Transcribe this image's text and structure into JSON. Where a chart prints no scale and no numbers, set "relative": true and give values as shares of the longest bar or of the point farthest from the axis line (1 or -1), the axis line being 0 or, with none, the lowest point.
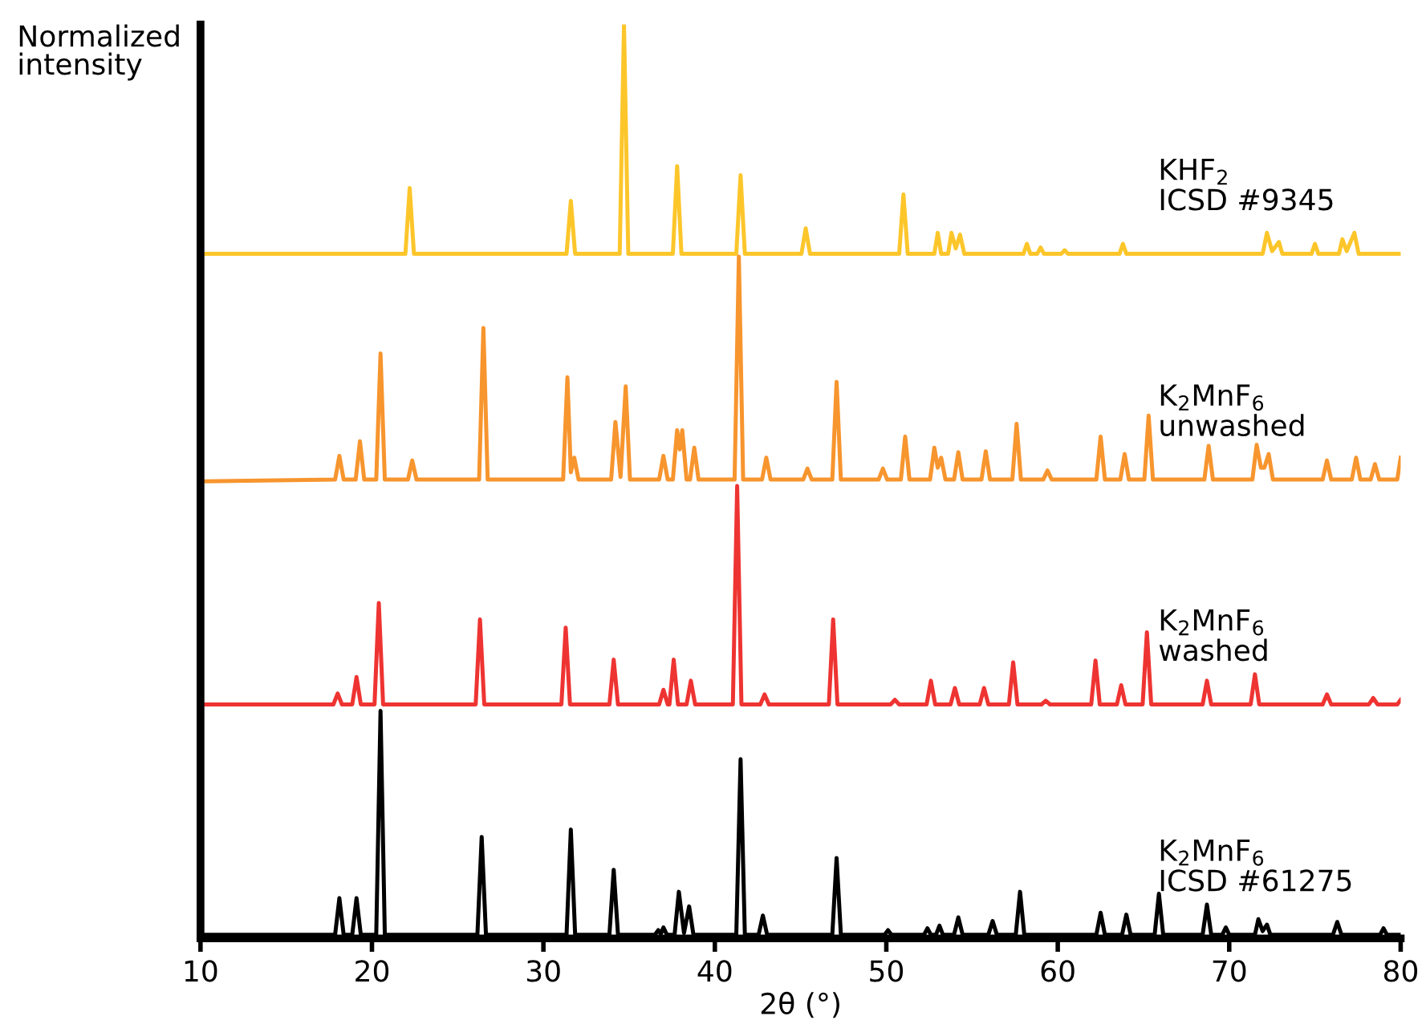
{
  "chart_data": {
    "type": "line",
    "relative": true,
    "xlabel": "2θ (°)",
    "ylabel": "Normalized\nintensity",
    "xlim": [
      10,
      80
    ],
    "xticks": [
      10,
      20,
      30,
      40,
      50,
      60,
      70,
      80
    ],
    "grid": false,
    "marker": "none",
    "line_style": "solid",
    "series": [
      {
        "name": "KHF$_{2}$\nICSD #9345",
        "color": "#fcc62b",
        "x": [
          10,
          21.95,
          22.2,
          22.45,
          31.35,
          31.6,
          31.85,
          34.45,
          34.7,
          34.95,
          37.55,
          37.8,
          38.05,
          41.25,
          41.5,
          41.75,
          45.05,
          45.3,
          45.55,
          50.75,
          51.0,
          51.25,
          52.8,
          53.0,
          53.2,
          53.6,
          53.8,
          54.05,
          54.3,
          54.55,
          58.0,
          58.2,
          58.4,
          58.8,
          59.0,
          59.2,
          60.2,
          60.4,
          60.6,
          63.6,
          63.8,
          64.0,
          71.95,
          72.2,
          72.5,
          72.9,
          73.1,
          74.8,
          75.0,
          75.2,
          76.4,
          76.6,
          76.85,
          77.3,
          77.55,
          80
        ],
        "values": [
          0.749,
          0.749,
          0.821,
          0.749,
          0.749,
          0.807,
          0.749,
          0.749,
          1.0,
          0.749,
          0.749,
          0.845,
          0.749,
          0.749,
          0.835,
          0.749,
          0.749,
          0.777,
          0.749,
          0.749,
          0.814,
          0.749,
          0.749,
          0.772,
          0.749,
          0.749,
          0.772,
          0.755,
          0.77,
          0.749,
          0.749,
          0.76,
          0.749,
          0.749,
          0.756,
          0.749,
          0.749,
          0.753,
          0.749,
          0.749,
          0.76,
          0.749,
          0.749,
          0.772,
          0.752,
          0.762,
          0.749,
          0.749,
          0.76,
          0.749,
          0.749,
          0.765,
          0.752,
          0.772,
          0.749,
          0.749
        ]
      },
      {
        "name": "K$_{2}$MnF$_{6}$\nunwashed",
        "color": "#f7952e",
        "x": [
          10,
          17.85,
          18.1,
          18.35,
          19.05,
          19.3,
          19.55,
          20.25,
          20.5,
          20.75,
          22.1,
          22.35,
          22.6,
          26.25,
          26.5,
          26.75,
          31.15,
          31.4,
          31.6,
          31.8,
          32.05,
          33.95,
          34.2,
          34.5,
          34.8,
          35.05,
          36.75,
          37.0,
          37.25,
          37.55,
          37.8,
          37.95,
          38.1,
          38.35,
          38.55,
          38.8,
          39.05,
          41.15,
          41.4,
          41.65,
          42.75,
          43.0,
          43.25,
          45.15,
          45.4,
          45.65,
          46.85,
          47.1,
          47.35,
          49.55,
          49.8,
          50.05,
          50.85,
          51.1,
          51.35,
          52.55,
          52.8,
          53.0,
          53.2,
          53.45,
          53.95,
          54.2,
          54.45,
          55.55,
          55.8,
          56.05,
          57.35,
          57.6,
          57.85,
          59.15,
          59.4,
          59.65,
          62.25,
          62.5,
          62.75,
          63.65,
          63.9,
          64.15,
          65.05,
          65.3,
          65.55,
          68.55,
          68.8,
          69.05,
          71.35,
          71.6,
          71.85,
          72.05,
          72.3,
          72.55,
          75.45,
          75.7,
          75.95,
          77.15,
          77.4,
          77.65,
          78.25,
          78.5,
          78.75,
          79.8,
          80
        ],
        "values": [
          0.5,
          0.502,
          0.528,
          0.502,
          0.502,
          0.544,
          0.502,
          0.502,
          0.64,
          0.502,
          0.502,
          0.523,
          0.502,
          0.502,
          0.668,
          0.502,
          0.502,
          0.614,
          0.51,
          0.526,
          0.502,
          0.502,
          0.565,
          0.505,
          0.604,
          0.502,
          0.502,
          0.528,
          0.502,
          0.502,
          0.556,
          0.535,
          0.556,
          0.502,
          0.502,
          0.537,
          0.502,
          0.502,
          0.746,
          0.502,
          0.502,
          0.526,
          0.502,
          0.502,
          0.514,
          0.502,
          0.502,
          0.609,
          0.502,
          0.502,
          0.514,
          0.502,
          0.502,
          0.549,
          0.502,
          0.502,
          0.537,
          0.515,
          0.526,
          0.502,
          0.502,
          0.532,
          0.502,
          0.502,
          0.533,
          0.502,
          0.502,
          0.563,
          0.502,
          0.502,
          0.512,
          0.502,
          0.502,
          0.549,
          0.502,
          0.502,
          0.53,
          0.502,
          0.502,
          0.572,
          0.502,
          0.502,
          0.539,
          0.502,
          0.502,
          0.54,
          0.515,
          0.515,
          0.53,
          0.502,
          0.502,
          0.523,
          0.502,
          0.502,
          0.526,
          0.502,
          0.502,
          0.519,
          0.502,
          0.502,
          0.526
        ]
      },
      {
        "name": "K$_{2}$MnF$_{6}$\nwashed",
        "color": "#ee3432",
        "x": [
          10,
          17.75,
          18.0,
          18.25,
          18.85,
          19.1,
          19.35,
          20.15,
          20.4,
          20.65,
          26.05,
          26.3,
          26.55,
          31.05,
          31.3,
          31.55,
          33.85,
          34.1,
          34.35,
          36.75,
          37.0,
          37.25,
          37.35,
          37.6,
          37.85,
          38.35,
          38.6,
          38.85,
          41.05,
          41.3,
          41.55,
          42.65,
          42.9,
          43.15,
          46.65,
          46.9,
          47.15,
          50.25,
          50.5,
          50.75,
          52.35,
          52.6,
          52.85,
          53.75,
          54.0,
          54.25,
          55.45,
          55.7,
          55.95,
          57.15,
          57.4,
          57.65,
          59.05,
          59.3,
          59.55,
          61.95,
          62.2,
          62.45,
          63.45,
          63.7,
          63.95,
          64.95,
          65.2,
          65.45,
          68.45,
          68.7,
          68.95,
          71.25,
          71.5,
          71.75,
          75.45,
          75.7,
          75.95,
          78.15,
          78.4,
          78.65,
          79.8,
          80
        ],
        "values": [
          0.256,
          0.256,
          0.268,
          0.256,
          0.256,
          0.286,
          0.256,
          0.256,
          0.367,
          0.256,
          0.256,
          0.349,
          0.256,
          0.256,
          0.34,
          0.256,
          0.256,
          0.305,
          0.256,
          0.256,
          0.272,
          0.256,
          0.256,
          0.305,
          0.256,
          0.256,
          0.282,
          0.256,
          0.256,
          0.495,
          0.256,
          0.256,
          0.267,
          0.256,
          0.256,
          0.349,
          0.256,
          0.256,
          0.261,
          0.256,
          0.256,
          0.282,
          0.256,
          0.256,
          0.274,
          0.256,
          0.256,
          0.274,
          0.256,
          0.256,
          0.302,
          0.256,
          0.256,
          0.26,
          0.256,
          0.256,
          0.304,
          0.256,
          0.256,
          0.277,
          0.256,
          0.256,
          0.335,
          0.256,
          0.256,
          0.282,
          0.256,
          0.256,
          0.289,
          0.256,
          0.256,
          0.267,
          0.256,
          0.256,
          0.263,
          0.256,
          0.256,
          0.261
        ]
      },
      {
        "name": "K$_{2}$MnF$_{6}$\nICSD #61275",
        "color": "#000000",
        "x": [
          10,
          17.85,
          18.1,
          18.35,
          18.85,
          19.1,
          19.35,
          20.25,
          20.5,
          20.75,
          26.15,
          26.4,
          26.65,
          31.35,
          31.6,
          31.85,
          33.85,
          34.1,
          34.35,
          36.5,
          36.7,
          36.85,
          37.0,
          37.2,
          37.65,
          37.9,
          38.2,
          38.5,
          38.75,
          41.25,
          41.5,
          41.75,
          42.55,
          42.8,
          43.05,
          46.85,
          47.1,
          47.35,
          49.9,
          50.1,
          50.3,
          52.2,
          52.4,
          52.6,
          52.9,
          53.1,
          53.3,
          53.95,
          54.2,
          54.45,
          55.95,
          56.2,
          56.45,
          57.55,
          57.8,
          58.05,
          62.25,
          62.5,
          62.75,
          63.75,
          64.0,
          64.25,
          65.65,
          65.9,
          66.15,
          68.45,
          68.7,
          68.95,
          69.6,
          69.8,
          70.0,
          71.5,
          71.7,
          71.95,
          72.2,
          72.4,
          76.05,
          76.3,
          76.55,
          78.8,
          79.0,
          79.2,
          80
        ],
        "values": [
          0.004,
          0.004,
          0.044,
          0.004,
          0.004,
          0.044,
          0.004,
          0.004,
          0.249,
          0.004,
          0.004,
          0.111,
          0.004,
          0.004,
          0.119,
          0.004,
          0.004,
          0.075,
          0.004,
          0.004,
          0.009,
          0.005,
          0.012,
          0.004,
          0.004,
          0.051,
          0.006,
          0.035,
          0.004,
          0.004,
          0.196,
          0.004,
          0.004,
          0.025,
          0.004,
          0.004,
          0.088,
          0.004,
          0.004,
          0.009,
          0.004,
          0.004,
          0.011,
          0.004,
          0.004,
          0.014,
          0.004,
          0.004,
          0.023,
          0.004,
          0.004,
          0.019,
          0.004,
          0.004,
          0.051,
          0.004,
          0.004,
          0.028,
          0.004,
          0.004,
          0.026,
          0.004,
          0.004,
          0.049,
          0.004,
          0.004,
          0.037,
          0.004,
          0.004,
          0.012,
          0.004,
          0.004,
          0.021,
          0.008,
          0.015,
          0.004,
          0.004,
          0.018,
          0.004,
          0.004,
          0.011,
          0.004,
          0.004
        ]
      }
    ]
  }
}
